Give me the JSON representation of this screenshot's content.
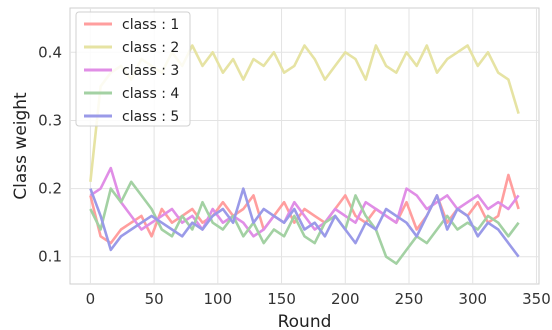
{
  "chart_data": {
    "type": "line",
    "xlabel": "Round",
    "ylabel": "Class weight",
    "xlim": [
      -16,
      352
    ],
    "ylim": [
      0.06,
      0.465
    ],
    "xticks": [
      0,
      50,
      100,
      150,
      200,
      250,
      300,
      350
    ],
    "xtick_labels": [
      "0",
      "50",
      "100",
      "150",
      "200",
      "250",
      "300",
      "350"
    ],
    "yticks": [
      0.1,
      0.2,
      0.3,
      0.4
    ],
    "ytick_labels": [
      "0.1",
      "0.2",
      "0.3",
      "0.4"
    ],
    "grid": true,
    "legend_position": "top-left",
    "series": [
      {
        "name": "class : 1",
        "color": "#ff9e9e",
        "x": [
          0,
          8,
          16,
          24,
          32,
          40,
          48,
          56,
          64,
          72,
          80,
          88,
          96,
          104,
          112,
          120,
          128,
          136,
          144,
          152,
          160,
          168,
          176,
          184,
          192,
          200,
          208,
          216,
          224,
          232,
          240,
          248,
          256,
          264,
          272,
          280,
          288,
          296,
          304,
          312,
          320,
          328,
          336
        ],
        "values": [
          0.19,
          0.13,
          0.12,
          0.14,
          0.15,
          0.16,
          0.13,
          0.17,
          0.15,
          0.16,
          0.17,
          0.15,
          0.16,
          0.18,
          0.16,
          0.17,
          0.19,
          0.14,
          0.16,
          0.18,
          0.15,
          0.17,
          0.16,
          0.15,
          0.17,
          0.19,
          0.16,
          0.15,
          0.17,
          0.16,
          0.15,
          0.18,
          0.14,
          0.16,
          0.19,
          0.15,
          0.17,
          0.16,
          0.18,
          0.15,
          0.16,
          0.22,
          0.17
        ]
      },
      {
        "name": "class : 2",
        "color": "#e6e3a3",
        "x": [
          0,
          8,
          16,
          24,
          32,
          40,
          48,
          56,
          64,
          72,
          80,
          88,
          96,
          104,
          112,
          120,
          128,
          136,
          144,
          152,
          160,
          168,
          176,
          184,
          192,
          200,
          208,
          216,
          224,
          232,
          240,
          248,
          256,
          264,
          272,
          280,
          288,
          296,
          304,
          312,
          320,
          328,
          336
        ],
        "values": [
          0.21,
          0.35,
          0.37,
          0.38,
          0.36,
          0.39,
          0.38,
          0.37,
          0.4,
          0.38,
          0.41,
          0.38,
          0.4,
          0.37,
          0.39,
          0.36,
          0.39,
          0.38,
          0.4,
          0.37,
          0.38,
          0.41,
          0.39,
          0.36,
          0.38,
          0.4,
          0.39,
          0.36,
          0.41,
          0.38,
          0.37,
          0.4,
          0.38,
          0.41,
          0.37,
          0.39,
          0.4,
          0.41,
          0.38,
          0.4,
          0.37,
          0.36,
          0.31
        ]
      },
      {
        "name": "class : 3",
        "color": "#e08ee6",
        "x": [
          0,
          8,
          16,
          24,
          32,
          40,
          48,
          56,
          64,
          72,
          80,
          88,
          96,
          104,
          112,
          120,
          128,
          136,
          144,
          152,
          160,
          168,
          176,
          184,
          192,
          200,
          208,
          216,
          224,
          232,
          240,
          248,
          256,
          264,
          272,
          280,
          288,
          296,
          304,
          312,
          320,
          328,
          336
        ],
        "values": [
          0.19,
          0.2,
          0.23,
          0.18,
          0.16,
          0.14,
          0.15,
          0.16,
          0.17,
          0.15,
          0.16,
          0.14,
          0.17,
          0.15,
          0.16,
          0.15,
          0.13,
          0.14,
          0.16,
          0.15,
          0.18,
          0.16,
          0.14,
          0.15,
          0.17,
          0.16,
          0.15,
          0.18,
          0.17,
          0.16,
          0.15,
          0.2,
          0.19,
          0.17,
          0.18,
          0.19,
          0.17,
          0.18,
          0.19,
          0.17,
          0.18,
          0.17,
          0.19
        ]
      },
      {
        "name": "class : 4",
        "color": "#a3d1a3",
        "x": [
          0,
          8,
          16,
          24,
          32,
          40,
          48,
          56,
          64,
          72,
          80,
          88,
          96,
          104,
          112,
          120,
          128,
          136,
          144,
          152,
          160,
          168,
          176,
          184,
          192,
          200,
          208,
          216,
          224,
          232,
          240,
          248,
          256,
          264,
          272,
          280,
          288,
          296,
          304,
          312,
          320,
          328,
          336
        ],
        "values": [
          0.17,
          0.14,
          0.2,
          0.18,
          0.21,
          0.19,
          0.17,
          0.14,
          0.13,
          0.16,
          0.14,
          0.18,
          0.15,
          0.14,
          0.16,
          0.13,
          0.15,
          0.12,
          0.14,
          0.13,
          0.16,
          0.13,
          0.12,
          0.15,
          0.16,
          0.14,
          0.19,
          0.16,
          0.14,
          0.1,
          0.09,
          0.11,
          0.13,
          0.12,
          0.14,
          0.16,
          0.14,
          0.15,
          0.14,
          0.16,
          0.15,
          0.13,
          0.15
        ]
      },
      {
        "name": "class : 5",
        "color": "#9a9ae8",
        "x": [
          0,
          8,
          16,
          24,
          32,
          40,
          48,
          56,
          64,
          72,
          80,
          88,
          96,
          104,
          112,
          120,
          128,
          136,
          144,
          152,
          160,
          168,
          176,
          184,
          192,
          200,
          208,
          216,
          224,
          232,
          240,
          248,
          256,
          264,
          272,
          280,
          288,
          296,
          304,
          312,
          320,
          328,
          336
        ],
        "values": [
          0.2,
          0.16,
          0.11,
          0.13,
          0.14,
          0.15,
          0.16,
          0.15,
          0.14,
          0.13,
          0.15,
          0.14,
          0.16,
          0.17,
          0.15,
          0.2,
          0.15,
          0.17,
          0.16,
          0.15,
          0.17,
          0.14,
          0.15,
          0.13,
          0.16,
          0.14,
          0.12,
          0.15,
          0.14,
          0.17,
          0.16,
          0.15,
          0.13,
          0.16,
          0.19,
          0.14,
          0.17,
          0.16,
          0.13,
          0.15,
          0.14,
          0.12,
          0.1
        ]
      }
    ]
  }
}
